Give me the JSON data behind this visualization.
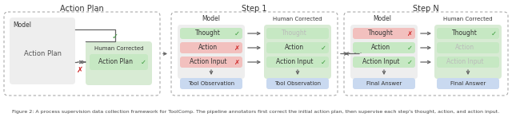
{
  "bg_color": "#ffffff",
  "section_titles": [
    "Action Plan",
    "Step 1",
    "Step N"
  ],
  "title_fontsize": 7.0,
  "label_fontsize": 6.0,
  "col_header_fontsize": 6.0,
  "caption_fontsize": 4.5,
  "green_box": "#c6e8c3",
  "red_box": "#f2c0be",
  "blue_box": "#c9d9f0",
  "gray_box": "#e9e9e9",
  "model_bg": "#eeeeee",
  "human_bg_s1": "#d8ebd4",
  "human_bg_action": "#d8ebd4",
  "green_check": "#3a9a3a",
  "red_x": "#cc2222",
  "arrow_color": "#666666",
  "dash_color": "#aaaaaa",
  "faded_text": "#bbbbbb",
  "dark_text": "#333333",
  "caption": "Figure 2: A process supervision data collection framework for ToolComp. The pipeline annotators first correct the initial action plan, then supervise each step's thought, action, and action input."
}
